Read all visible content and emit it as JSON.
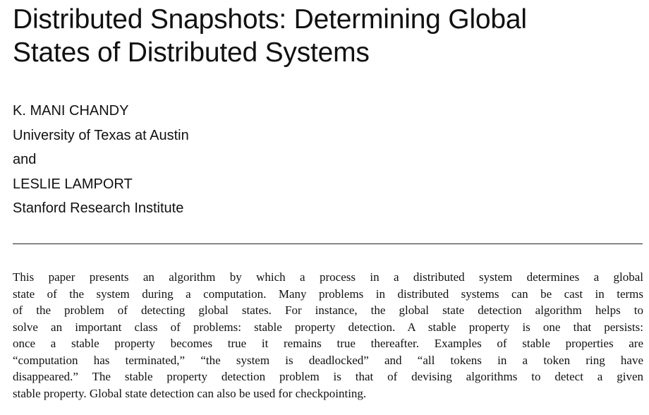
{
  "title": {
    "line1": "Distributed Snapshots: Determining Global",
    "line2": "States of Distributed Systems"
  },
  "authors": {
    "author1_name": "K. MANI CHANDY",
    "author1_affiliation": "University of Texas at Austin",
    "conjunction": "and",
    "author2_name": "LESLIE LAMPORT",
    "author2_affiliation": "Stanford Research Institute"
  },
  "abstract": {
    "lines": [
      "This paper presents an algorithm by which a process in a distributed system determines a global",
      "state of the system during a computation. Many problems in distributed systems can be cast in terms",
      "of the problem of detecting global states. For instance, the global state detection algorithm helps to",
      "solve an important class of problems: stable property detection. A stable property is one that persists:",
      "once a stable property becomes true it remains true thereafter. Examples of stable properties are",
      "“computation has terminated,” “the system is deadlocked” and “all tokens in a token ring have",
      "disappeared.” The stable property detection problem is that of devising algorithms to detect a given",
      "stable property. Global state detection can also be used for checkpointing."
    ]
  }
}
